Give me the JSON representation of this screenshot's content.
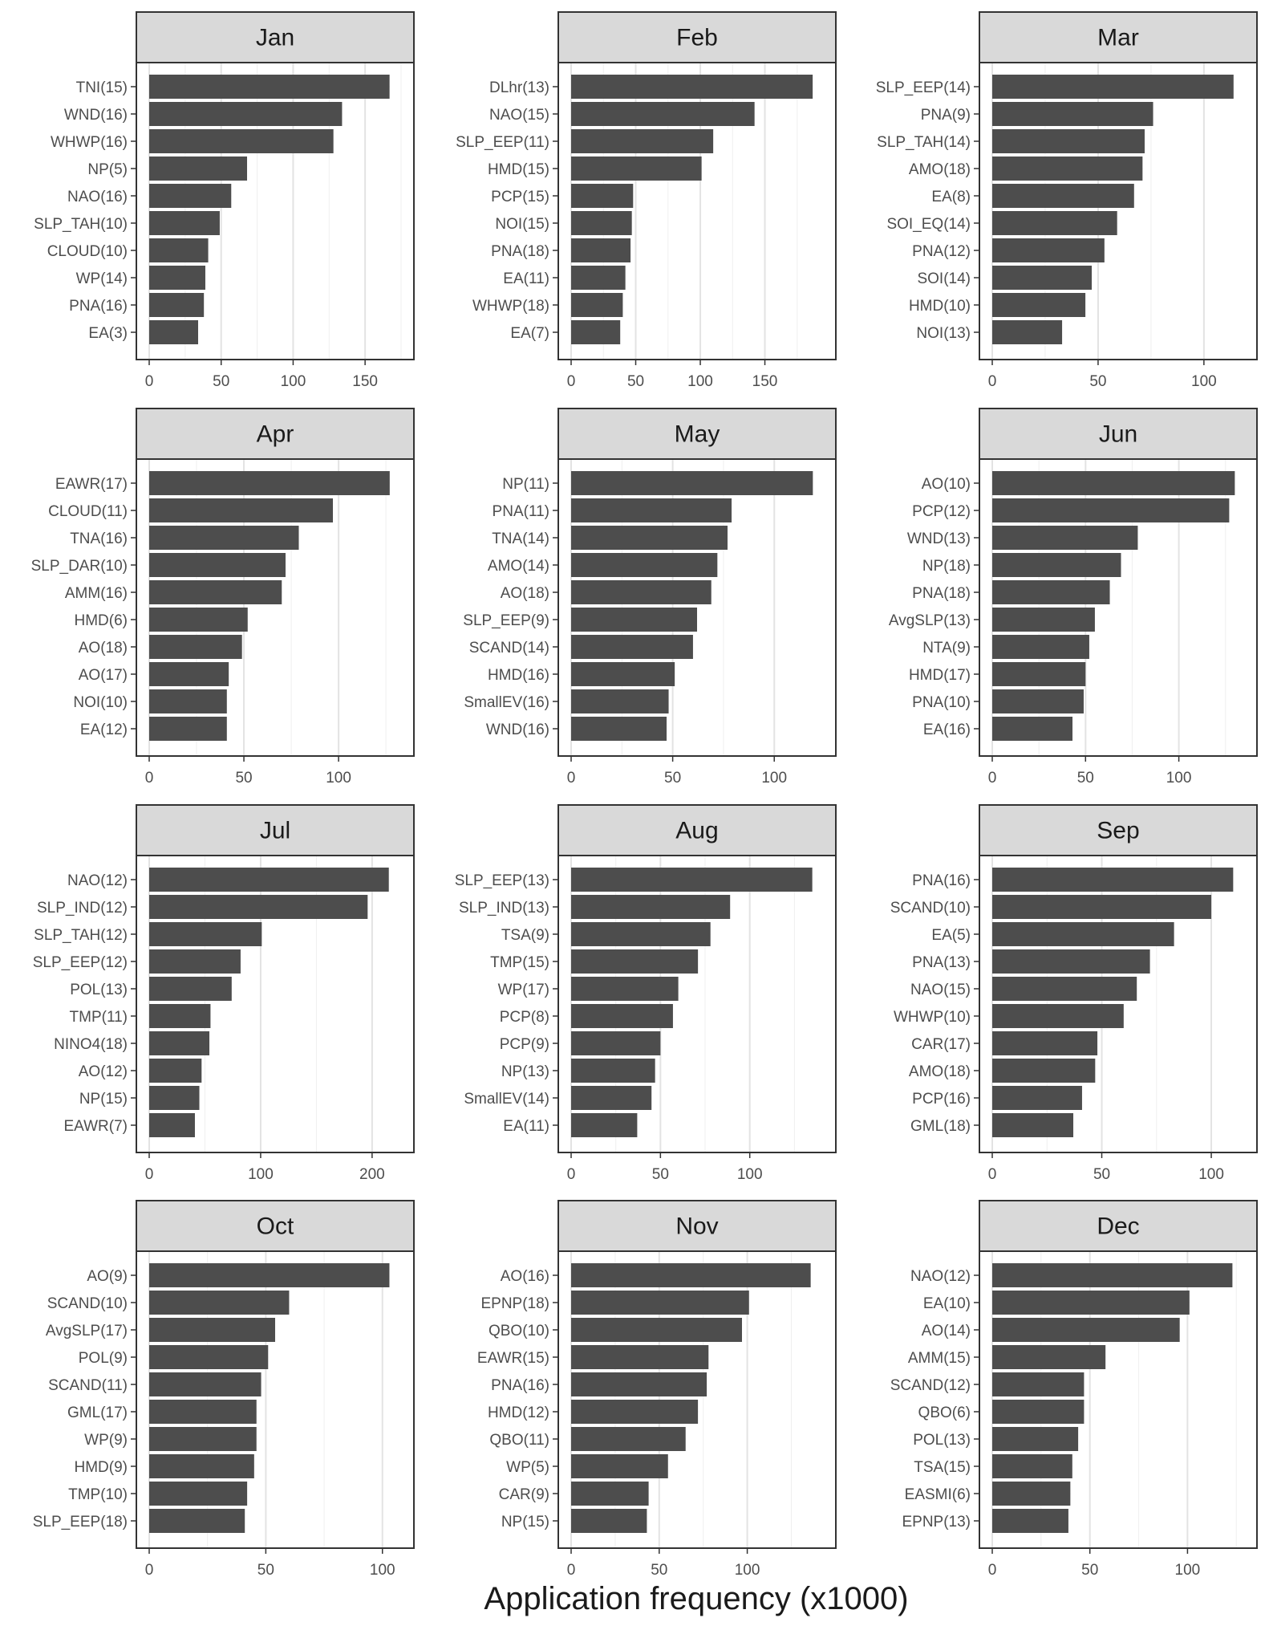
{
  "chart_data": {
    "type": "bar",
    "orientation": "horizontal",
    "facet_layout": "3 columns x 4 rows",
    "xlabel": "Application frequency (x1000)",
    "bar_color": "#4d4d4d",
    "strip_color": "#d9d9d9",
    "grid": true,
    "panels": [
      {
        "title": "Jan",
        "xlim": [
          0,
          175
        ],
        "ticks": [
          0,
          50,
          100,
          150
        ],
        "categories": [
          "TNI(15)",
          "WND(16)",
          "WHWP(16)",
          "NP(5)",
          "NAO(16)",
          "SLP_TAH(10)",
          "CLOUD(10)",
          "WP(14)",
          "PNA(16)",
          "EA(3)"
        ],
        "values": [
          167,
          134,
          128,
          68,
          57,
          49,
          41,
          39,
          38,
          34
        ]
      },
      {
        "title": "Feb",
        "xlim": [
          0,
          195
        ],
        "ticks": [
          0,
          50,
          100,
          150
        ],
        "categories": [
          "DLhr(13)",
          "NAO(15)",
          "SLP_EEP(11)",
          "HMD(15)",
          "PCP(15)",
          "NOI(15)",
          "PNA(18)",
          "EA(11)",
          "WHWP(18)",
          "EA(7)"
        ],
        "values": [
          187,
          142,
          110,
          101,
          48,
          47,
          46,
          42,
          40,
          38
        ]
      },
      {
        "title": "Mar",
        "xlim": [
          0,
          119
        ],
        "ticks": [
          0,
          50,
          100
        ],
        "categories": [
          "SLP_EEP(14)",
          "PNA(9)",
          "SLP_TAH(14)",
          "AMO(18)",
          "EA(8)",
          "SOI_EQ(14)",
          "PNA(12)",
          "SOI(14)",
          "HMD(10)",
          "NOI(13)"
        ],
        "values": [
          114,
          76,
          72,
          71,
          67,
          59,
          53,
          47,
          44,
          33
        ]
      },
      {
        "title": "Apr",
        "xlim": [
          0,
          133
        ],
        "ticks": [
          0,
          50,
          100
        ],
        "categories": [
          "EAWR(17)",
          "CLOUD(11)",
          "TNA(16)",
          "SLP_DAR(10)",
          "AMM(16)",
          "HMD(6)",
          "AO(18)",
          "AO(17)",
          "NOI(10)",
          "EA(12)"
        ],
        "values": [
          127,
          97,
          79,
          72,
          70,
          52,
          49,
          42,
          41,
          41
        ]
      },
      {
        "title": "May",
        "xlim": [
          0,
          124
        ],
        "ticks": [
          0,
          50,
          100
        ],
        "categories": [
          "NP(11)",
          "PNA(11)",
          "TNA(14)",
          "AMO(14)",
          "AO(18)",
          "SLP_EEP(9)",
          "SCAND(14)",
          "HMD(16)",
          "SmallEV(16)",
          "WND(16)"
        ],
        "values": [
          119,
          79,
          77,
          72,
          69,
          62,
          60,
          51,
          48,
          47
        ]
      },
      {
        "title": "Jun",
        "xlim": [
          0,
          135
        ],
        "ticks": [
          0,
          50,
          100
        ],
        "categories": [
          "AO(10)",
          "PCP(12)",
          "WND(13)",
          "NP(18)",
          "PNA(18)",
          "AvgSLP(13)",
          "NTA(9)",
          "HMD(17)",
          "PNA(10)",
          "EA(16)"
        ],
        "values": [
          130,
          127,
          78,
          69,
          63,
          55,
          52,
          50,
          49,
          43
        ]
      },
      {
        "title": "Jul",
        "xlim": [
          0,
          226
        ],
        "ticks": [
          0,
          100,
          200
        ],
        "categories": [
          "NAO(12)",
          "SLP_IND(12)",
          "SLP_TAH(12)",
          "SLP_EEP(12)",
          "POL(13)",
          "TMP(11)",
          "NINO4(18)",
          "AO(12)",
          "NP(15)",
          "EAWR(7)"
        ],
        "values": [
          215,
          196,
          101,
          82,
          74,
          55,
          54,
          47,
          45,
          41
        ]
      },
      {
        "title": "Aug",
        "xlim": [
          0,
          141
        ],
        "ticks": [
          0,
          50,
          100
        ],
        "categories": [
          "SLP_EEP(13)",
          "SLP_IND(13)",
          "TSA(9)",
          "TMP(15)",
          "WP(17)",
          "PCP(8)",
          "PCP(9)",
          "NP(13)",
          "SmallEV(14)",
          "EA(11)"
        ],
        "values": [
          135,
          89,
          78,
          71,
          60,
          57,
          50,
          47,
          45,
          37
        ]
      },
      {
        "title": "Sep",
        "xlim": [
          0,
          115
        ],
        "ticks": [
          0,
          50,
          100
        ],
        "categories": [
          "PNA(16)",
          "SCAND(10)",
          "EA(5)",
          "PNA(13)",
          "NAO(15)",
          "WHWP(10)",
          "CAR(17)",
          "AMO(18)",
          "PCP(16)",
          "GML(18)"
        ],
        "values": [
          110,
          100,
          83,
          72,
          66,
          60,
          48,
          47,
          41,
          37
        ]
      },
      {
        "title": "Oct",
        "xlim": [
          0,
          108
        ],
        "ticks": [
          0,
          50,
          100
        ],
        "categories": [
          "AO(9)",
          "SCAND(10)",
          "AvgSLP(17)",
          "POL(9)",
          "SCAND(11)",
          "GML(17)",
          "WP(9)",
          "HMD(9)",
          "TMP(10)",
          "SLP_EEP(18)"
        ],
        "values": [
          103,
          60,
          54,
          51,
          48,
          46,
          46,
          45,
          42,
          41
        ]
      },
      {
        "title": "Nov",
        "xlim": [
          0,
          143
        ],
        "ticks": [
          0,
          50,
          100
        ],
        "categories": [
          "AO(16)",
          "EPNP(18)",
          "QBO(10)",
          "EAWR(15)",
          "PNA(16)",
          "HMD(12)",
          "QBO(11)",
          "WP(5)",
          "CAR(9)",
          "NP(15)"
        ],
        "values": [
          136,
          101,
          97,
          78,
          77,
          72,
          65,
          55,
          44,
          43
        ]
      },
      {
        "title": "Dec",
        "xlim": [
          0,
          129
        ],
        "ticks": [
          0,
          50,
          100
        ],
        "categories": [
          "NAO(12)",
          "EA(10)",
          "AO(14)",
          "AMM(15)",
          "SCAND(12)",
          "QBO(6)",
          "POL(13)",
          "TSA(15)",
          "EASMI(6)",
          "EPNP(13)"
        ],
        "values": [
          123,
          101,
          96,
          58,
          47,
          47,
          44,
          41,
          40,
          39
        ]
      }
    ]
  }
}
